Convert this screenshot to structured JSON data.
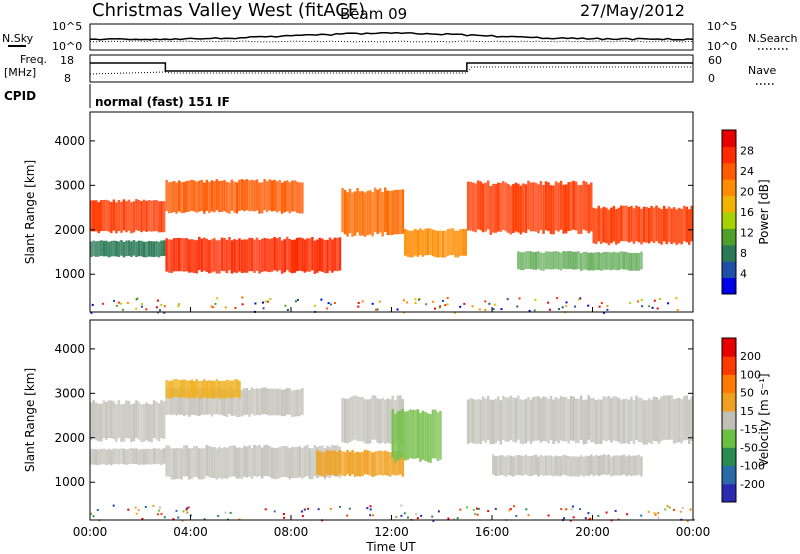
{
  "header": {
    "title": "Christmas Valley West (fitACF)",
    "beam": "Beam 09",
    "date": "27/May/2012"
  },
  "top_panels": {
    "nsky": {
      "left_label": "N.Sky",
      "right_label": "N.Search",
      "left_ticks": [
        "10^5",
        "10^0"
      ],
      "right_ticks": [
        "10^5",
        "10^0"
      ]
    },
    "freq": {
      "left_label_1": "Freq.",
      "left_label_2": "[MHz]",
      "right_label": "Nave",
      "left_ticks": [
        "18",
        "8"
      ],
      "right_ticks": [
        "60",
        "0"
      ]
    },
    "cpid": {
      "label": "CPID",
      "mode": "normal (fast) 151 IF"
    }
  },
  "chart_data": [
    {
      "type": "heatmap",
      "name": "power",
      "xlabel": "",
      "ylabel": "Slant Range [km]",
      "x_ticks": [
        "00:00",
        "04:00",
        "08:00",
        "12:00",
        "16:00",
        "20:00",
        "00:00"
      ],
      "y_ticks": [
        "1000",
        "2000",
        "3000",
        "4000"
      ],
      "xlim": [
        0,
        24
      ],
      "ylim": [
        150,
        4650
      ],
      "colorbar": {
        "label": "Power [dB]",
        "ticks": [
          "4",
          "8",
          "12",
          "16",
          "20",
          "24",
          "28"
        ],
        "colors": [
          "#0000e6",
          "#1f4fa8",
          "#2a7a55",
          "#4fa02a",
          "#a6d200",
          "#f0b400",
          "#ff8c00",
          "#ff5a00",
          "#ff2a00",
          "#e60000"
        ]
      },
      "bands": [
        {
          "t0": 0.0,
          "t1": 3.0,
          "r0": 1950,
          "r1": 2650,
          "color": "#ff3a00"
        },
        {
          "t0": 0.0,
          "t1": 3.0,
          "r0": 1400,
          "r1": 1750,
          "color": "#2a7a55"
        },
        {
          "t0": 3.0,
          "t1": 10.0,
          "r0": 1050,
          "r1": 1800,
          "color": "#ff2a00"
        },
        {
          "t0": 3.0,
          "t1": 8.5,
          "r0": 2400,
          "r1": 3100,
          "color": "#ff5a00"
        },
        {
          "t0": 10.0,
          "t1": 12.5,
          "r0": 1900,
          "r1": 2900,
          "color": "#ff6a00"
        },
        {
          "t0": 12.5,
          "t1": 15.0,
          "r0": 1400,
          "r1": 2000,
          "color": "#ff8c00"
        },
        {
          "t0": 15.0,
          "t1": 20.0,
          "r0": 1950,
          "r1": 3050,
          "color": "#ff3a00"
        },
        {
          "t0": 20.0,
          "t1": 24.0,
          "r0": 1700,
          "r1": 2500,
          "color": "#ff3a00"
        },
        {
          "t0": 17.0,
          "t1": 22.0,
          "r0": 1100,
          "r1": 1500,
          "color": "#6ab060"
        }
      ]
    },
    {
      "type": "heatmap",
      "name": "velocity",
      "xlabel": "Time UT",
      "ylabel": "Slant Range [km]",
      "x_ticks": [
        "00:00",
        "04:00",
        "08:00",
        "12:00",
        "16:00",
        "20:00",
        "00:00"
      ],
      "y_ticks": [
        "1000",
        "2000",
        "3000",
        "4000"
      ],
      "xlim": [
        0,
        24
      ],
      "ylim": [
        150,
        4650
      ],
      "colorbar": {
        "label": "Velocity [m s⁻¹]",
        "ticks": [
          "200",
          "100",
          "50",
          "15",
          "-15",
          "-50",
          "-100",
          "-200"
        ],
        "colors": [
          "#2a2ab0",
          "#2a6aa8",
          "#2a8a50",
          "#6ac040",
          "#c0c0b8",
          "#f0a020",
          "#ff7a00",
          "#ff3a00",
          "#e60000"
        ]
      },
      "bands": [
        {
          "t0": 0.0,
          "t1": 3.0,
          "r0": 1950,
          "r1": 2800,
          "color": "#c4c4bc"
        },
        {
          "t0": 0.0,
          "t1": 3.0,
          "r0": 1400,
          "r1": 1750,
          "color": "#c4c4bc"
        },
        {
          "t0": 3.0,
          "t1": 10.0,
          "r0": 1100,
          "r1": 1800,
          "color": "#c4c4bc"
        },
        {
          "t0": 3.0,
          "t1": 8.5,
          "r0": 2500,
          "r1": 3100,
          "color": "#c4c4bc"
        },
        {
          "t0": 10.0,
          "t1": 12.5,
          "r0": 1900,
          "r1": 2900,
          "color": "#c4c4bc"
        },
        {
          "t0": 15.0,
          "t1": 24.0,
          "r0": 1900,
          "r1": 2900,
          "color": "#c4c4bc"
        },
        {
          "t0": 16.0,
          "t1": 22.0,
          "r0": 1150,
          "r1": 1600,
          "color": "#c4c4bc"
        },
        {
          "t0": 9.0,
          "t1": 12.5,
          "r0": 1150,
          "r1": 1700,
          "color": "#f0a020"
        },
        {
          "t0": 3.0,
          "t1": 6.0,
          "r0": 2900,
          "r1": 3300,
          "color": "#f0b020"
        },
        {
          "t0": 12.0,
          "t1": 14.0,
          "r0": 1500,
          "r1": 2600,
          "color": "#7ac050"
        }
      ]
    }
  ]
}
